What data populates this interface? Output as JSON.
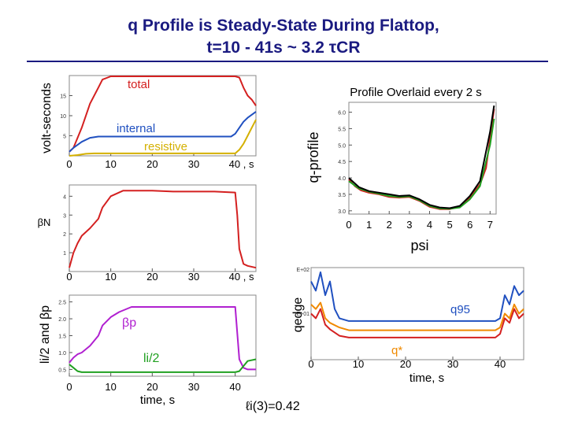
{
  "title_line1": "q Profile is Steady-State During Flattop,",
  "title_line2": "t=10 - 41s  ~ 3.2 τCR",
  "colors": {
    "title": "#1a1a80",
    "red": "#d42020",
    "blue": "#2050c0",
    "yellow": "#d4b000",
    "magenta": "#b020d0",
    "green": "#20a020",
    "orange": "#f08a00"
  },
  "chart_data": [
    {
      "id": "volt_seconds",
      "type": "line",
      "ylabel": "volt-seconds",
      "x_ticks": [
        "0",
        "10",
        "20",
        "30",
        "40 , s"
      ],
      "y_ticks": [
        "5",
        "10",
        "15"
      ],
      "xlim": [
        0,
        45
      ],
      "ylim": [
        0,
        20
      ],
      "series": [
        {
          "name": "total",
          "color": "#d42020",
          "x": [
            0,
            1,
            3,
            5,
            7,
            8,
            10,
            15,
            20,
            25,
            30,
            35,
            40,
            41,
            42,
            43,
            44,
            45
          ],
          "y": [
            1,
            2,
            7,
            13,
            17,
            19,
            19.8,
            19.8,
            19.8,
            19.8,
            19.8,
            19.8,
            19.8,
            19.5,
            17,
            15,
            14,
            12.5
          ]
        },
        {
          "name": "internal",
          "color": "#2050c0",
          "x": [
            0,
            1,
            3,
            5,
            7,
            10,
            20,
            30,
            39,
            40,
            41,
            42,
            43,
            45
          ],
          "y": [
            1,
            2,
            3.5,
            4.5,
            4.8,
            4.8,
            4.8,
            4.8,
            4.8,
            5.5,
            7,
            8.5,
            9.5,
            11
          ]
        },
        {
          "name": "resistive",
          "color": "#d4b000",
          "x": [
            0,
            2,
            4,
            6,
            8,
            10,
            20,
            30,
            40,
            41,
            42,
            43,
            44,
            45
          ],
          "y": [
            0,
            0.2,
            0.5,
            0.6,
            0.6,
            0.6,
            0.6,
            0.6,
            0.6,
            1.5,
            3,
            5,
            7,
            9
          ]
        }
      ]
    },
    {
      "id": "beta_n",
      "type": "line",
      "ylabel": "βN",
      "x_ticks": [
        "0",
        "10",
        "20",
        "30",
        "40 , s"
      ],
      "y_ticks": [
        "1",
        "2",
        "3",
        "4"
      ],
      "xlim": [
        0,
        45
      ],
      "ylim": [
        0,
        4.6
      ],
      "series": [
        {
          "name": "",
          "color": "#d42020",
          "x": [
            0,
            1,
            2,
            3,
            5,
            7,
            8,
            10,
            13,
            15,
            20,
            25,
            30,
            35,
            40,
            40.5,
            41,
            42,
            43,
            45
          ],
          "y": [
            0.2,
            1,
            1.5,
            1.9,
            2.3,
            2.8,
            3.4,
            4.0,
            4.3,
            4.3,
            4.3,
            4.25,
            4.25,
            4.25,
            4.2,
            3.0,
            1.2,
            0.4,
            0.3,
            0.2
          ]
        }
      ]
    },
    {
      "id": "li_beta_p",
      "type": "line",
      "ylabel": "li/2 and βp",
      "xlabel": "time, s",
      "x_ticks": [
        "0",
        "10",
        "20",
        "30",
        "40"
      ],
      "y_ticks": [
        "0.5",
        "1.0",
        "1.5",
        "2.0",
        "2.5"
      ],
      "xlim": [
        0,
        45
      ],
      "ylim": [
        0.3,
        2.7
      ],
      "series": [
        {
          "name": "βp",
          "color": "#b020d0",
          "x": [
            0,
            1,
            2,
            3,
            5,
            7,
            8,
            10,
            12,
            15,
            20,
            25,
            30,
            35,
            40,
            41,
            42,
            43,
            45
          ],
          "y": [
            0.7,
            0.85,
            0.95,
            1.0,
            1.2,
            1.5,
            1.8,
            2.05,
            2.2,
            2.35,
            2.35,
            2.35,
            2.35,
            2.35,
            2.35,
            0.8,
            0.55,
            0.5,
            0.5
          ]
        },
        {
          "name": "li/2",
          "color": "#20a020",
          "x": [
            0,
            1,
            2,
            3,
            5,
            10,
            15,
            20,
            25,
            30,
            35,
            40,
            41,
            42,
            43,
            45
          ],
          "y": [
            0.65,
            0.55,
            0.45,
            0.42,
            0.42,
            0.42,
            0.42,
            0.42,
            0.42,
            0.42,
            0.42,
            0.42,
            0.45,
            0.6,
            0.75,
            0.8
          ]
        }
      ]
    },
    {
      "id": "q_profile",
      "type": "line",
      "title": "Profile Overlaid every 2 s",
      "ylabel": "q-profile",
      "xlabel": "psi",
      "x_ticks": [
        "0",
        "1",
        "2",
        "3",
        "4",
        "5",
        "6",
        "7"
      ],
      "y_ticks": [
        "3.0",
        "3.5",
        "4.0",
        "4.5",
        "5.0",
        "5.5",
        "6.0"
      ],
      "xlim": [
        0,
        7.3
      ],
      "ylim": [
        2.9,
        6.3
      ],
      "series": [
        {
          "name": "",
          "color": "#d42020",
          "x": [
            0,
            0.3,
            0.6,
            1,
            1.5,
            2,
            2.5,
            3,
            3.5,
            4,
            4.5,
            5,
            5.5,
            6,
            6.5,
            6.8,
            7,
            7.2
          ],
          "y": [
            3.95,
            3.75,
            3.62,
            3.55,
            3.5,
            3.42,
            3.4,
            3.42,
            3.3,
            3.12,
            3.05,
            3.05,
            3.12,
            3.4,
            3.8,
            4.3,
            5.2,
            6.1
          ]
        },
        {
          "name": "",
          "color": "#20a020",
          "x": [
            0,
            0.5,
            1,
            1.5,
            2,
            2.5,
            3,
            3.5,
            4,
            4.5,
            5,
            5.5,
            6,
            6.5,
            7,
            7.2
          ],
          "y": [
            3.9,
            3.68,
            3.58,
            3.52,
            3.45,
            3.42,
            3.44,
            3.32,
            3.15,
            3.07,
            3.06,
            3.1,
            3.35,
            3.75,
            5.0,
            5.8
          ]
        },
        {
          "name": "",
          "color": "#000000",
          "x": [
            0,
            0.5,
            1,
            1.5,
            2,
            2.5,
            3,
            3.5,
            4,
            4.5,
            5,
            5.5,
            6,
            6.5,
            7,
            7.2
          ],
          "y": [
            4.0,
            3.72,
            3.6,
            3.55,
            3.5,
            3.45,
            3.47,
            3.35,
            3.18,
            3.1,
            3.08,
            3.15,
            3.45,
            3.9,
            5.4,
            6.2
          ]
        }
      ]
    },
    {
      "id": "qedge",
      "type": "line",
      "ylabel": "qedge",
      "xlabel": "time, s",
      "y_tick_top": "E+02",
      "y_tick_mid": "E+01",
      "x_ticks": [
        "0",
        "10",
        "20",
        "30",
        "40"
      ],
      "xlim": [
        0,
        45
      ],
      "ylim": [
        0,
        1
      ],
      "series": [
        {
          "name": "q95",
          "color": "#2050c0",
          "x": [
            0,
            1,
            2,
            3,
            4,
            5,
            6,
            8,
            10,
            20,
            30,
            39,
            40,
            41,
            42,
            43,
            44,
            45
          ],
          "y": [
            0.85,
            0.75,
            0.95,
            0.7,
            0.85,
            0.55,
            0.45,
            0.42,
            0.42,
            0.42,
            0.42,
            0.42,
            0.45,
            0.7,
            0.6,
            0.8,
            0.7,
            0.75
          ]
        },
        {
          "name": "q*",
          "color": "#f08a00",
          "x": [
            0,
            1,
            2,
            3,
            4,
            6,
            8,
            10,
            20,
            30,
            39,
            40,
            41,
            42,
            43,
            44,
            45
          ],
          "y": [
            0.6,
            0.55,
            0.62,
            0.45,
            0.4,
            0.35,
            0.32,
            0.32,
            0.32,
            0.32,
            0.32,
            0.35,
            0.5,
            0.45,
            0.6,
            0.5,
            0.55
          ]
        },
        {
          "name": "",
          "color": "#d42020",
          "x": [
            0,
            1,
            2,
            3,
            4,
            6,
            8,
            10,
            20,
            30,
            39,
            40,
            41,
            42,
            43,
            44,
            45
          ],
          "y": [
            0.5,
            0.45,
            0.55,
            0.38,
            0.33,
            0.26,
            0.24,
            0.24,
            0.24,
            0.24,
            0.24,
            0.28,
            0.45,
            0.4,
            0.55,
            0.45,
            0.5
          ]
        }
      ]
    }
  ],
  "annotation": "ℓi(3)=0.42"
}
